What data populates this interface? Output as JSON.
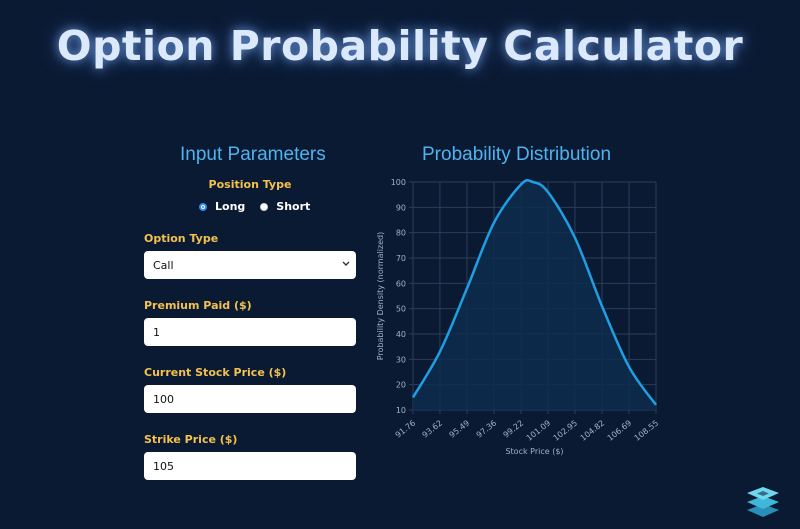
{
  "page_title": "Option Probability Calculator",
  "input_panel": {
    "title": "Input Parameters",
    "position_type": {
      "label": "Position Type",
      "options": [
        "Long",
        "Short"
      ],
      "selected": "Long"
    },
    "option_type": {
      "label": "Option Type",
      "value": "Call"
    },
    "premium": {
      "label": "Premium Paid ($)",
      "value": "1"
    },
    "current_price": {
      "label": "Current Stock Price ($)",
      "value": "100"
    },
    "strike": {
      "label": "Strike Price ($)",
      "value": "105"
    }
  },
  "chart_panel": {
    "title": "Probability Distribution"
  },
  "chart_data": {
    "type": "line",
    "xlabel": "Stock Price ($)",
    "ylabel": "Probability Density (normalized)",
    "x_ticks": [
      "91.76",
      "93.62",
      "95.49",
      "97.36",
      "99.22",
      "101.09",
      "102.95",
      "104.82",
      "106.69",
      "108.55"
    ],
    "y_ticks": [
      10,
      20,
      30,
      40,
      50,
      60,
      70,
      80,
      90,
      100
    ],
    "ylim": [
      10,
      100
    ],
    "xlim": [
      91.76,
      108.55
    ],
    "grid": true,
    "series": [
      {
        "x": [
          91.76,
          93.62,
          95.49,
          97.36,
          99.22,
          100.04,
          101.09,
          102.95,
          104.82,
          106.69,
          108.55
        ],
        "y": [
          15,
          33,
          58,
          84,
          99,
          100,
          96,
          78,
          51,
          27,
          12
        ]
      }
    ],
    "colors": {
      "line": "#1f9fe3",
      "fill": "#0e2d4e",
      "grid": "#2a3e5a",
      "text": "#9fb2c6"
    }
  }
}
